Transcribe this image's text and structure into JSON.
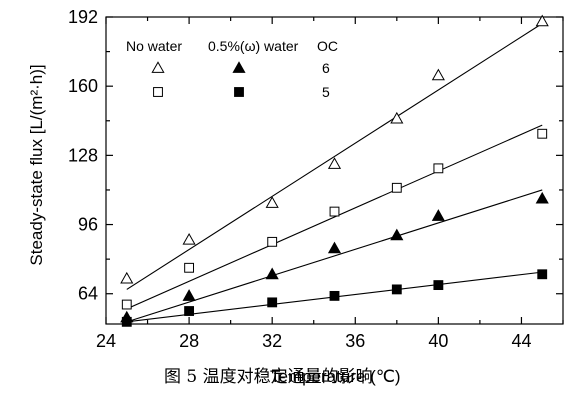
{
  "chart_data": {
    "type": "scatter",
    "xlabel": "Temperature (℃)",
    "ylabel": "Steady-state flux [L/(m²·h)]",
    "caption": "图 5 温度对稳定通量的影响",
    "xlim": [
      24,
      46
    ],
    "ylim": [
      50,
      192
    ],
    "xticks": [
      24,
      28,
      32,
      36,
      40,
      44
    ],
    "yticks": [
      64,
      96,
      128,
      160,
      192
    ],
    "legend": {
      "col_no_water": "No water",
      "col_water": "0.5%(ω) water",
      "col_oc": "OC",
      "rows": [
        {
          "oc": "6",
          "no_water_series": "open-triangle",
          "water_series": "filled-triangle"
        },
        {
          "oc": "5",
          "no_water_series": "open-square",
          "water_series": "filled-square"
        }
      ]
    },
    "series": [
      {
        "marker": "open-triangle",
        "x": [
          25,
          28,
          32,
          35,
          38,
          40,
          45
        ],
        "y": [
          71,
          89,
          106,
          124,
          145,
          165,
          190
        ],
        "fit": [
          [
            25,
            66
          ],
          [
            45,
            189
          ]
        ]
      },
      {
        "marker": "open-square",
        "x": [
          25,
          28,
          32,
          35,
          38,
          40,
          45
        ],
        "y": [
          59,
          76,
          88,
          102,
          113,
          122,
          138
        ],
        "fit": [
          [
            25,
            57
          ],
          [
            45,
            142
          ]
        ]
      },
      {
        "marker": "filled-triangle",
        "x": [
          25,
          28,
          32,
          35,
          38,
          40,
          45
        ],
        "y": [
          53,
          63,
          73,
          85,
          91,
          100,
          108
        ],
        "fit": [
          [
            25,
            51
          ],
          [
            45,
            112
          ]
        ]
      },
      {
        "marker": "filled-square",
        "x": [
          25,
          28,
          32,
          35,
          38,
          40,
          45
        ],
        "y": [
          51,
          56,
          60,
          63,
          66,
          68,
          73
        ],
        "fit": [
          [
            25,
            51
          ],
          [
            45,
            74
          ]
        ]
      }
    ]
  }
}
